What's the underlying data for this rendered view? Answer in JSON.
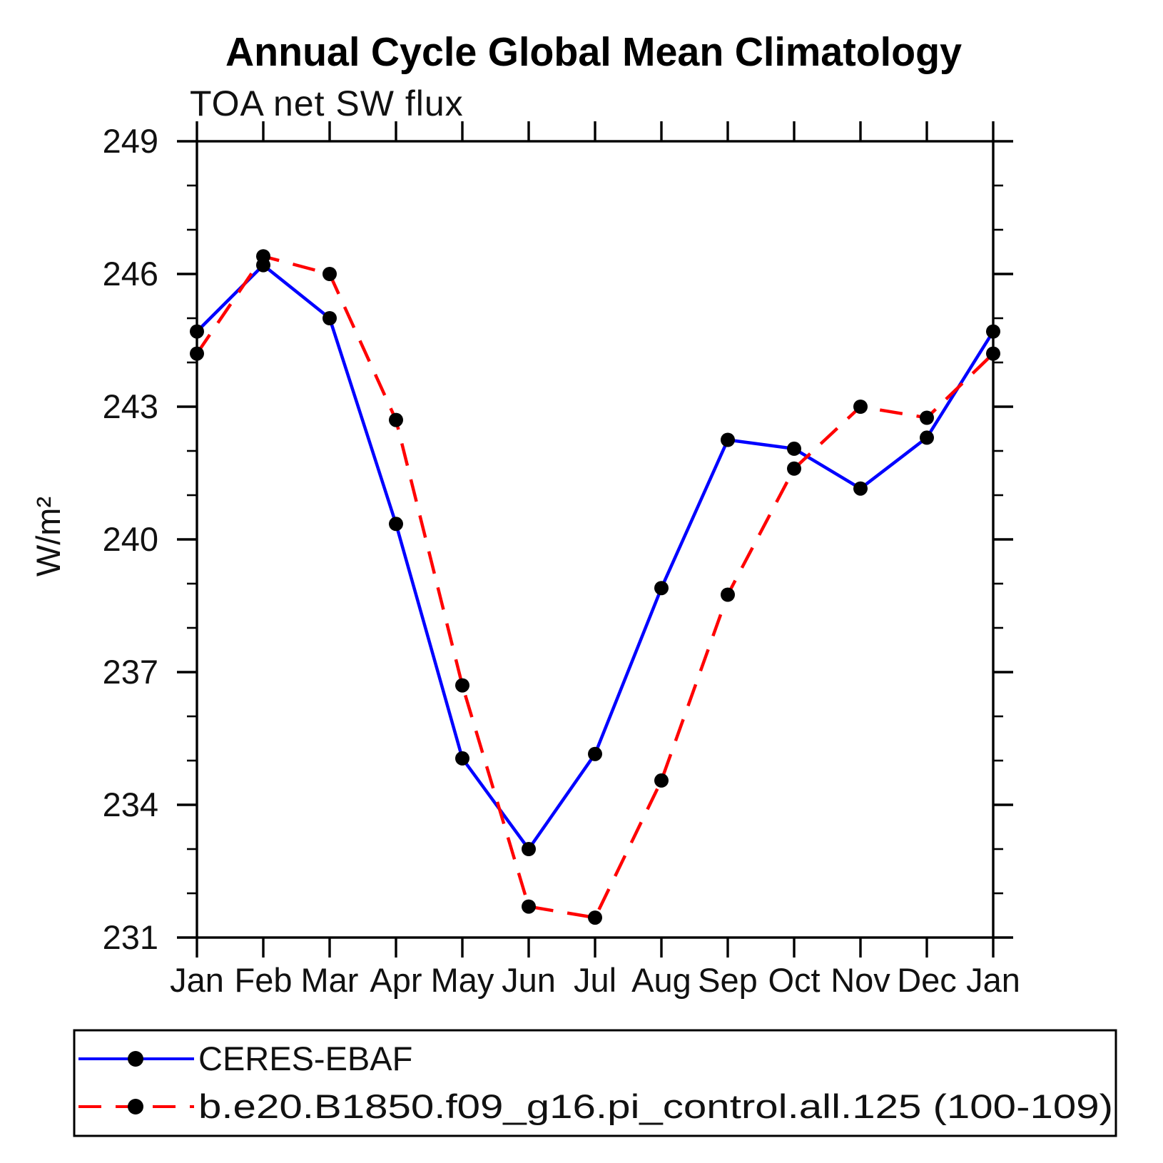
{
  "page": {
    "background": "#ffffff"
  },
  "title": "Annual Cycle Global Mean Climatology",
  "subtitle": "TOA net SW flux",
  "y_axis": {
    "label": "W/m²",
    "min": 231,
    "max": 249,
    "major_step": 3,
    "minor_step": 1,
    "major_tick_labels": [
      "249",
      "246",
      "243",
      "240",
      "237",
      "234",
      "231"
    ]
  },
  "x_axis": {
    "labels": [
      "Jan",
      "Feb",
      "Mar",
      "Apr",
      "May",
      "Jun",
      "Jul",
      "Aug",
      "Sep",
      "Oct",
      "Nov",
      "Dec",
      "Jan"
    ]
  },
  "legend": {
    "items": [
      {
        "label": "CERES-EBAF",
        "color": "#0000ff",
        "style": "solid"
      },
      {
        "label": "b.e20.B1850.f09_g16.pi_control.all.125 (100-109)",
        "color": "#ff0000",
        "style": "dashed"
      }
    ]
  },
  "marker_color": "#000000",
  "axis_color": "#000000",
  "chart_data": {
    "type": "line",
    "title": "Annual Cycle Global Mean Climatology",
    "subtitle": "TOA net SW flux",
    "xlabel": "",
    "ylabel": "W/m²",
    "ylim": [
      231,
      249
    ],
    "y_major_step": 3,
    "y_minor_step": 1,
    "grid": false,
    "legend_position": "bottom",
    "x": [
      "Jan",
      "Feb",
      "Mar",
      "Apr",
      "May",
      "Jun",
      "Jul",
      "Aug",
      "Sep",
      "Oct",
      "Nov",
      "Dec",
      "Jan"
    ],
    "series": [
      {
        "name": "CERES-EBAF",
        "color": "#0000ff",
        "line_style": "solid",
        "marker": "filled-circle",
        "marker_color": "#000000",
        "values": [
          244.7,
          246.2,
          245.0,
          240.35,
          235.05,
          233.0,
          235.15,
          238.9,
          242.25,
          242.05,
          241.15,
          242.3,
          244.7
        ]
      },
      {
        "name": "b.e20.B1850.f09_g16.pi_control.all.125 (100-109)",
        "color": "#ff0000",
        "line_style": "dashed",
        "marker": "filled-circle",
        "marker_color": "#000000",
        "values": [
          244.2,
          246.4,
          246.0,
          242.7,
          236.7,
          231.7,
          231.45,
          234.55,
          238.75,
          241.6,
          243.0,
          242.75,
          244.2
        ]
      }
    ]
  }
}
